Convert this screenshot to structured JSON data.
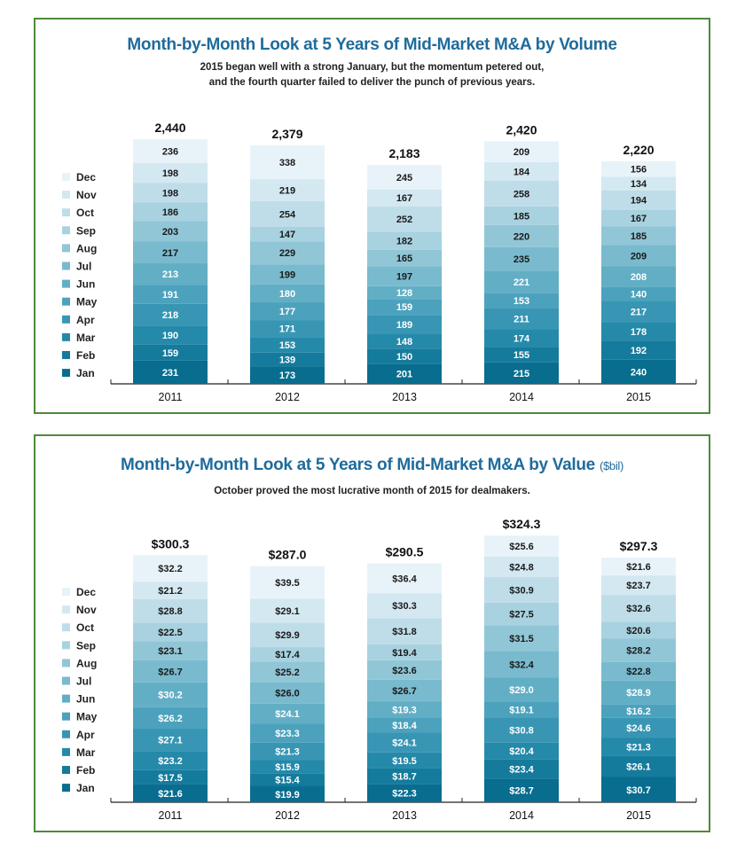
{
  "charts": [
    {
      "title": "Month-by-Month Look at 5 Years of Mid-Market M&A by Volume",
      "title_unit": "",
      "subtitle_lines": [
        "2015 began well with a strong January, but the momentum petered out,",
        "and the fourth quarter failed to deliver the punch of previous years."
      ]
    },
    {
      "title": "Month-by-Month Look at 5 Years of Mid-Market M&A by Value",
      "title_unit": "($bil)",
      "subtitle_lines": [
        "October proved the most lucrative month of 2015 for dealmakers."
      ]
    }
  ],
  "chart_data": [
    {
      "type": "bar",
      "stacked": true,
      "categories": [
        "2011",
        "2012",
        "2013",
        "2014",
        "2015"
      ],
      "title": "Month-by-Month Look at 5 Years of Mid-Market M&A by Volume",
      "legend_placement": "left",
      "totals": [
        "2,440",
        "2,379",
        "2,183",
        "2,420",
        "2,220"
      ],
      "total_values": [
        2440,
        2379,
        2183,
        2420,
        2220
      ],
      "series": [
        {
          "name": "Jan",
          "values": [
            231,
            173,
            201,
            215,
            240
          ],
          "labels": [
            "231",
            "173",
            "201",
            "215",
            "240"
          ]
        },
        {
          "name": "Feb",
          "values": [
            159,
            139,
            150,
            155,
            192
          ],
          "labels": [
            "159",
            "139",
            "150",
            "155",
            "192"
          ]
        },
        {
          "name": "Mar",
          "values": [
            190,
            153,
            148,
            174,
            178
          ],
          "labels": [
            "190",
            "153",
            "148",
            "174",
            "178"
          ]
        },
        {
          "name": "Apr",
          "values": [
            218,
            171,
            189,
            211,
            217
          ],
          "labels": [
            "218",
            "171",
            "189",
            "211",
            "217"
          ]
        },
        {
          "name": "May",
          "values": [
            191,
            177,
            159,
            153,
            140
          ],
          "labels": [
            "191",
            "177",
            "159",
            "153",
            "140"
          ]
        },
        {
          "name": "Jun",
          "values": [
            213,
            180,
            128,
            221,
            208
          ],
          "labels": [
            "213",
            "180",
            "128",
            "221",
            "208"
          ]
        },
        {
          "name": "Jul",
          "values": [
            217,
            199,
            197,
            235,
            209
          ],
          "labels": [
            "217",
            "199",
            "197",
            "235",
            "209"
          ]
        },
        {
          "name": "Aug",
          "values": [
            203,
            229,
            165,
            220,
            185
          ],
          "labels": [
            "203",
            "229",
            "165",
            "220",
            "185"
          ]
        },
        {
          "name": "Sep",
          "values": [
            186,
            147,
            182,
            185,
            167
          ],
          "labels": [
            "186",
            "147",
            "182",
            "185",
            "167"
          ]
        },
        {
          "name": "Oct",
          "values": [
            198,
            254,
            252,
            258,
            194
          ],
          "labels": [
            "198",
            "254",
            "252",
            "258",
            "194"
          ]
        },
        {
          "name": "Nov",
          "values": [
            198,
            219,
            167,
            184,
            134
          ],
          "labels": [
            "198",
            "219",
            "167",
            "184",
            "134"
          ]
        },
        {
          "name": "Dec",
          "values": [
            236,
            338,
            245,
            209,
            156
          ],
          "labels": [
            "236",
            "338",
            "245",
            "209",
            "156"
          ]
        }
      ],
      "colors": [
        "#086d8f",
        "#157b9c",
        "#2589a9",
        "#3896b4",
        "#4ca2bd",
        "#62aec5",
        "#79bace",
        "#91c6d7",
        "#a8d2e0",
        "#bfdde9",
        "#d4e8f1",
        "#e8f3f9"
      ]
    },
    {
      "type": "bar",
      "stacked": true,
      "categories": [
        "2011",
        "2012",
        "2013",
        "2014",
        "2015"
      ],
      "title": "Month-by-Month Look at 5 Years of Mid-Market M&A by Value",
      "unit": "($bil)",
      "legend_placement": "left",
      "totals": [
        "$300.3",
        "$287.0",
        "$290.5",
        "$324.3",
        "$297.3"
      ],
      "total_values": [
        300.3,
        287.0,
        290.5,
        324.3,
        297.3
      ],
      "series": [
        {
          "name": "Jan",
          "values": [
            21.6,
            19.9,
            22.3,
            28.7,
            30.7
          ],
          "labels": [
            "$21.6",
            "$19.9",
            "$22.3",
            "$28.7",
            "$30.7"
          ]
        },
        {
          "name": "Feb",
          "values": [
            17.5,
            15.4,
            18.7,
            23.4,
            26.1
          ],
          "labels": [
            "$17.5",
            "$15.4",
            "$18.7",
            "$23.4",
            "$26.1"
          ]
        },
        {
          "name": "Mar",
          "values": [
            23.2,
            15.9,
            19.5,
            20.4,
            21.3
          ],
          "labels": [
            "$23.2",
            "$15.9",
            "$19.5",
            "$20.4",
            "$21.3"
          ]
        },
        {
          "name": "Apr",
          "values": [
            27.1,
            21.3,
            24.1,
            30.8,
            24.6
          ],
          "labels": [
            "$27.1",
            "$21.3",
            "$24.1",
            "$30.8",
            "$24.6"
          ]
        },
        {
          "name": "May",
          "values": [
            26.2,
            23.3,
            18.4,
            19.1,
            16.2
          ],
          "labels": [
            "$26.2",
            "$23.3",
            "$18.4",
            "$19.1",
            "$16.2"
          ]
        },
        {
          "name": "Jun",
          "values": [
            30.2,
            24.1,
            19.3,
            29.0,
            28.9
          ],
          "labels": [
            "$30.2",
            "$24.1",
            "$19.3",
            "$29.0",
            "$28.9"
          ]
        },
        {
          "name": "Jul",
          "values": [
            26.7,
            26.0,
            26.7,
            32.4,
            22.8
          ],
          "labels": [
            "$26.7",
            "$26.0",
            "$26.7",
            "$32.4",
            "$22.8"
          ]
        },
        {
          "name": "Aug",
          "values": [
            23.1,
            25.2,
            23.6,
            31.5,
            28.2
          ],
          "labels": [
            "$23.1",
            "$25.2",
            "$23.6",
            "$31.5",
            "$28.2"
          ]
        },
        {
          "name": "Sep",
          "values": [
            22.5,
            17.4,
            19.4,
            27.5,
            20.6
          ],
          "labels": [
            "$22.5",
            "$17.4",
            "$19.4",
            "$27.5",
            "$20.6"
          ]
        },
        {
          "name": "Oct",
          "values": [
            28.8,
            29.9,
            31.8,
            30.9,
            32.6
          ],
          "labels": [
            "$28.8",
            "$29.9",
            "$31.8",
            "$30.9",
            "$32.6"
          ]
        },
        {
          "name": "Nov",
          "values": [
            21.2,
            29.1,
            30.3,
            24.8,
            23.7
          ],
          "labels": [
            "$21.2",
            "$29.1",
            "$30.3",
            "$24.8",
            "$23.7"
          ]
        },
        {
          "name": "Dec",
          "values": [
            32.2,
            39.5,
            36.4,
            25.6,
            21.6
          ],
          "labels": [
            "$32.2",
            "$39.5",
            "$36.4",
            "$25.6",
            "$21.6"
          ]
        }
      ],
      "colors": [
        "#086d8f",
        "#157b9c",
        "#2589a9",
        "#3896b4",
        "#4ca2bd",
        "#62aec5",
        "#79bace",
        "#91c6d7",
        "#a8d2e0",
        "#bfdde9",
        "#d4e8f1",
        "#e8f3f9"
      ]
    }
  ]
}
